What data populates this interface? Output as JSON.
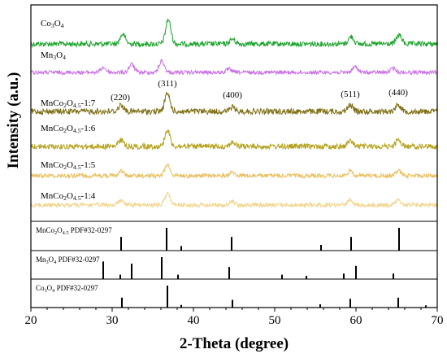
{
  "chart_data": {
    "type": "line",
    "xlabel": "2-Theta (degree)",
    "ylabel": "Intensity (a.u.)",
    "xlim": [
      20,
      70
    ],
    "x_ticks": [
      20,
      30,
      40,
      50,
      60,
      70
    ],
    "series": [
      {
        "name": "Co3O4",
        "label_main": "Co",
        "label_sub1": "3",
        "label_mid": "O",
        "label_sub2": "4",
        "label_tail": "",
        "color": "#1aa42a",
        "peaks": [
          {
            "x": 31.3,
            "h": 12
          },
          {
            "x": 36.9,
            "h": 30
          },
          {
            "x": 44.8,
            "h": 6
          },
          {
            "x": 59.4,
            "h": 9
          },
          {
            "x": 65.3,
            "h": 11
          }
        ]
      },
      {
        "name": "Mn3O4",
        "label_main": "Mn",
        "label_sub1": "3",
        "label_mid": "O",
        "label_sub2": "4",
        "label_tail": "",
        "color": "#c86ee6",
        "peaks": [
          {
            "x": 28.9,
            "h": 6
          },
          {
            "x": 32.4,
            "h": 10
          },
          {
            "x": 36.1,
            "h": 14
          },
          {
            "x": 44.4,
            "h": 4
          },
          {
            "x": 59.9,
            "h": 7
          },
          {
            "x": 64.6,
            "h": 5
          }
        ]
      },
      {
        "name": "MnCo2O4.5-1:7",
        "label_main": "MnCo",
        "label_sub1": "2",
        "label_mid": "O",
        "label_sub2": "4.5",
        "label_tail": "-1:7",
        "color": "#7f7016",
        "peaks": [
          {
            "x": 31.1,
            "h": 8
          },
          {
            "x": 36.8,
            "h": 22
          },
          {
            "x": 44.8,
            "h": 5
          },
          {
            "x": 59.3,
            "h": 8
          },
          {
            "x": 65.2,
            "h": 9
          }
        ]
      },
      {
        "name": "MnCo2O4.5-1:6",
        "label_main": "MnCo",
        "label_sub1": "2",
        "label_mid": "O",
        "label_sub2": "4.5",
        "label_tail": "-1:6",
        "color": "#b5a21c",
        "peaks": [
          {
            "x": 31.1,
            "h": 8
          },
          {
            "x": 36.8,
            "h": 20
          },
          {
            "x": 44.8,
            "h": 5
          },
          {
            "x": 59.3,
            "h": 7
          },
          {
            "x": 65.2,
            "h": 8
          }
        ]
      },
      {
        "name": "MnCo2O4.5-1:5",
        "label_main": "MnCo",
        "label_sub1": "2",
        "label_mid": "O",
        "label_sub2": "4.5",
        "label_tail": "-1:5",
        "color": "#e9c060",
        "peaks": [
          {
            "x": 31.1,
            "h": 6
          },
          {
            "x": 36.8,
            "h": 14
          },
          {
            "x": 44.8,
            "h": 4
          },
          {
            "x": 59.3,
            "h": 6
          },
          {
            "x": 65.2,
            "h": 6
          }
        ]
      },
      {
        "name": "MnCo2O4.5-1:4",
        "label_main": "MnCo",
        "label_sub1": "2",
        "label_mid": "O",
        "label_sub2": "4.5",
        "label_tail": "-1:4",
        "color": "#f1d58c",
        "peaks": [
          {
            "x": 31.1,
            "h": 6
          },
          {
            "x": 36.8,
            "h": 14
          },
          {
            "x": 44.8,
            "h": 4
          },
          {
            "x": 59.3,
            "h": 6
          },
          {
            "x": 65.2,
            "h": 6
          }
        ]
      }
    ],
    "peak_labels": [
      {
        "text": "(220)",
        "x": 31.0
      },
      {
        "text": "(311)",
        "x": 36.8
      },
      {
        "text": "(400)",
        "x": 44.8
      },
      {
        "text": "(511)",
        "x": 59.3
      },
      {
        "text": "(440)",
        "x": 65.2
      }
    ],
    "reference_panels": [
      {
        "name": "MnCo2O4.5 PDF#32-0297",
        "label_main": "MnCo",
        "label_sub1": "2",
        "label_mid": "O",
        "label_sub2": "4.5",
        "label_tail": " PDF#32-0297",
        "lines": [
          {
            "x": 31.1,
            "h": 0.6
          },
          {
            "x": 36.7,
            "h": 1.0
          },
          {
            "x": 38.5,
            "h": 0.2
          },
          {
            "x": 44.7,
            "h": 0.6
          },
          {
            "x": 55.7,
            "h": 0.25
          },
          {
            "x": 59.4,
            "h": 0.6
          },
          {
            "x": 65.3,
            "h": 1.0
          }
        ]
      },
      {
        "name": "Mn3O4 PDF#32-0297",
        "label_main": "Mn",
        "label_sub1": "3",
        "label_mid": "O",
        "label_sub2": "4",
        "label_tail": " PDF#32-0297",
        "lines": [
          {
            "x": 28.9,
            "h": 0.8
          },
          {
            "x": 31.0,
            "h": 0.2
          },
          {
            "x": 32.4,
            "h": 0.7
          },
          {
            "x": 36.1,
            "h": 1.0
          },
          {
            "x": 38.1,
            "h": 0.2
          },
          {
            "x": 44.4,
            "h": 0.55
          },
          {
            "x": 50.9,
            "h": 0.2
          },
          {
            "x": 53.9,
            "h": 0.15
          },
          {
            "x": 58.5,
            "h": 0.25
          },
          {
            "x": 60.0,
            "h": 0.6
          },
          {
            "x": 64.6,
            "h": 0.25
          }
        ]
      },
      {
        "name": "Co3O4 PDF#32-0297",
        "label_main": "Co",
        "label_sub1": "3",
        "label_mid": "O",
        "label_sub2": "4",
        "label_tail": " PDF#32-0297",
        "lines": [
          {
            "x": 31.2,
            "h": 0.45
          },
          {
            "x": 36.8,
            "h": 1.0
          },
          {
            "x": 38.5,
            "h": 0.12
          },
          {
            "x": 44.8,
            "h": 0.35
          },
          {
            "x": 55.6,
            "h": 0.15
          },
          {
            "x": 59.3,
            "h": 0.4
          },
          {
            "x": 65.2,
            "h": 0.45
          },
          {
            "x": 68.6,
            "h": 0.1
          }
        ]
      }
    ]
  }
}
